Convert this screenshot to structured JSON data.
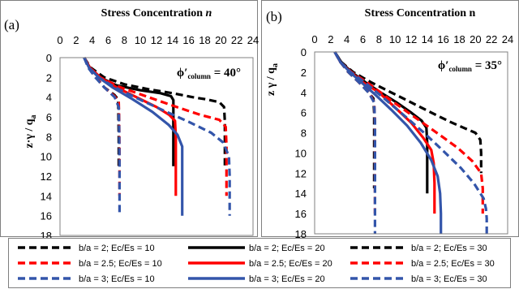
{
  "chart_data": [
    {
      "type": "line",
      "panel_label": "(a)",
      "title": "Stress Concentration ",
      "title_var": "n",
      "ylabel": "z·γ / q",
      "ylabel_sub": "a",
      "annotation": "ϕ′",
      "annotation_sub": "column",
      "annotation_value": " = 40°",
      "x_axis_position": "top",
      "y_reversed": true,
      "xlim": [
        0,
        24
      ],
      "ylim": [
        0,
        18
      ],
      "xticks": [
        "0",
        "2",
        "4",
        "6",
        "8",
        "10",
        "12",
        "14",
        "16",
        "18",
        "20",
        "22",
        "24"
      ],
      "yticks": [
        "0",
        "2",
        "4",
        "6",
        "8",
        "10",
        "12",
        "14",
        "16",
        "18"
      ],
      "series": [
        {
          "name": "b/a = 2; Ec/Es = 10",
          "color": "#000000",
          "dash": "dash",
          "points": [
            [
              3,
              0
            ],
            [
              3.6,
              1
            ],
            [
              4.5,
              2
            ],
            [
              5.5,
              3
            ],
            [
              6.8,
              3.8
            ],
            [
              7.2,
              4.2
            ],
            [
              7.25,
              5
            ],
            [
              7.3,
              8
            ],
            [
              7.3,
              11
            ]
          ]
        },
        {
          "name": "b/a = 2; Ec/Es = 20",
          "color": "#000000",
          "dash": "solid",
          "points": [
            [
              3,
              0
            ],
            [
              3.7,
              1
            ],
            [
              5,
              2
            ],
            [
              7,
              2.8
            ],
            [
              10,
              3.3
            ],
            [
              12.5,
              3.6
            ],
            [
              13.8,
              3.9
            ],
            [
              14.1,
              4.3
            ],
            [
              14.1,
              6
            ],
            [
              14.1,
              11
            ]
          ]
        },
        {
          "name": "b/a = 2; Ec/Es = 30",
          "color": "#000000",
          "dash": "dash",
          "points": [
            [
              3,
              0
            ],
            [
              3.8,
              1
            ],
            [
              5.5,
              2
            ],
            [
              8,
              2.7
            ],
            [
              11,
              3.2
            ],
            [
              14,
              3.6
            ],
            [
              16.5,
              4
            ],
            [
              18,
              4.2
            ],
            [
              19.8,
              4.5
            ],
            [
              20.4,
              5
            ],
            [
              20.5,
              6.5
            ],
            [
              20.5,
              8
            ],
            [
              20.5,
              11
            ]
          ]
        },
        {
          "name": "b/a = 2.5; Ec/Es = 10",
          "color": "#ff0000",
          "dash": "dash",
          "points": [
            [
              3,
              0
            ],
            [
              3.6,
              1
            ],
            [
              4.5,
              2
            ],
            [
              5.5,
              3
            ],
            [
              6.8,
              3.9
            ],
            [
              7.3,
              4.5
            ],
            [
              7.35,
              6
            ],
            [
              7.4,
              10
            ],
            [
              7.4,
              14
            ]
          ]
        },
        {
          "name": "b/a = 2.5; Ec/Es = 20",
          "color": "#ff0000",
          "dash": "solid",
          "points": [
            [
              3,
              0
            ],
            [
              3.7,
              1
            ],
            [
              5,
              2
            ],
            [
              7,
              3
            ],
            [
              9.5,
              4
            ],
            [
              12,
              5
            ],
            [
              13.6,
              5.8
            ],
            [
              14.3,
              6.4
            ],
            [
              14.4,
              8
            ],
            [
              14.4,
              14
            ]
          ]
        },
        {
          "name": "b/a = 2.5; Ec/Es = 30",
          "color": "#ff0000",
          "dash": "dash",
          "points": [
            [
              3,
              0
            ],
            [
              3.7,
              1
            ],
            [
              5,
              2
            ],
            [
              7.5,
              3
            ],
            [
              11,
              4
            ],
            [
              14.5,
              5
            ],
            [
              17.5,
              5.8
            ],
            [
              19.8,
              6.3
            ],
            [
              20.6,
              7
            ],
            [
              20.7,
              9
            ],
            [
              20.7,
              14
            ]
          ]
        },
        {
          "name": "b/a = 3; Ec/Es = 10",
          "color": "#3355aa",
          "dash": "dash",
          "points": [
            [
              3,
              0
            ],
            [
              3.5,
              1
            ],
            [
              4.4,
              2
            ],
            [
              5.5,
              3
            ],
            [
              6.8,
              4
            ],
            [
              7.3,
              5
            ],
            [
              7.35,
              7
            ],
            [
              7.4,
              11
            ],
            [
              7.4,
              16
            ]
          ]
        },
        {
          "name": "b/a = 3; Ec/Es = 20",
          "color": "#3355aa",
          "dash": "solid",
          "points": [
            [
              3,
              0
            ],
            [
              3.6,
              1
            ],
            [
              4.8,
              2
            ],
            [
              6.5,
              3
            ],
            [
              9,
              4.2
            ],
            [
              11.5,
              5.5
            ],
            [
              13.5,
              6.8
            ],
            [
              14.6,
              7.8
            ],
            [
              15.2,
              9
            ],
            [
              15.2,
              12
            ],
            [
              15.2,
              16
            ]
          ]
        },
        {
          "name": "b/a = 3; Ec/Es = 30",
          "color": "#3355aa",
          "dash": "dash",
          "points": [
            [
              3,
              0
            ],
            [
              3.6,
              1
            ],
            [
              4.8,
              2
            ],
            [
              6.8,
              3
            ],
            [
              9.8,
              4.2
            ],
            [
              13,
              5.4
            ],
            [
              16,
              6.5
            ],
            [
              18.8,
              7.6
            ],
            [
              20.3,
              8.6
            ],
            [
              21,
              10
            ],
            [
              21.1,
              12
            ],
            [
              21.1,
              16
            ]
          ]
        }
      ]
    },
    {
      "type": "line",
      "panel_label": "(b)",
      "title": "Stress Concentration n",
      "ylabel": "z γ / q",
      "ylabel_sub": "a",
      "annotation": "ϕ′",
      "annotation_sub": "column",
      "annotation_value": " = 35°",
      "x_axis_position": "top",
      "y_reversed": true,
      "xlim": [
        0,
        24
      ],
      "ylim": [
        0,
        18
      ],
      "xticks": [
        "0",
        "2",
        "4",
        "6",
        "8",
        "10",
        "12",
        "14",
        "16",
        "18",
        "20",
        "22",
        "24"
      ],
      "yticks": [
        "0",
        "2",
        "4",
        "6",
        "8",
        "10",
        "12",
        "14",
        "16",
        "18"
      ],
      "series": [
        {
          "name": "b/a = 2; Ec/Es = 10",
          "color": "#000000",
          "dash": "dash",
          "points": [
            [
              2.5,
              0
            ],
            [
              3.2,
              1
            ],
            [
              4.2,
              2
            ],
            [
              5.5,
              3
            ],
            [
              6.7,
              4
            ],
            [
              7.3,
              4.6
            ],
            [
              7.4,
              6
            ],
            [
              7.4,
              10
            ],
            [
              7.4,
              13.5
            ]
          ]
        },
        {
          "name": "b/a = 2; Ec/Es = 20",
          "color": "#000000",
          "dash": "solid",
          "points": [
            [
              2.5,
              0
            ],
            [
              3.3,
              1
            ],
            [
              4.6,
              2
            ],
            [
              6.3,
              3
            ],
            [
              8.2,
              4
            ],
            [
              10.2,
              5
            ],
            [
              12,
              6
            ],
            [
              13.3,
              6.8
            ],
            [
              13.9,
              7.5
            ],
            [
              14,
              9
            ],
            [
              14,
              14
            ]
          ]
        },
        {
          "name": "b/a = 2; Ec/Es = 30",
          "color": "#000000",
          "dash": "dash",
          "points": [
            [
              2.5,
              0
            ],
            [
              3.3,
              1
            ],
            [
              4.8,
              2
            ],
            [
              7,
              3
            ],
            [
              9.5,
              4
            ],
            [
              12,
              5
            ],
            [
              14.5,
              6
            ],
            [
              16.8,
              6.9
            ],
            [
              18.5,
              7.5
            ],
            [
              20,
              8
            ],
            [
              20.6,
              8.7
            ],
            [
              20.7,
              10
            ],
            [
              20.7,
              12
            ]
          ]
        },
        {
          "name": "b/a = 2.5; Ec/Es = 10",
          "color": "#ff0000",
          "dash": "dash",
          "points": [
            [
              2.5,
              0
            ],
            [
              3.2,
              1
            ],
            [
              4.2,
              2
            ],
            [
              5.5,
              3
            ],
            [
              6.8,
              4
            ],
            [
              7.4,
              5
            ],
            [
              7.5,
              7
            ],
            [
              7.5,
              12
            ],
            [
              7.5,
              16
            ]
          ]
        },
        {
          "name": "b/a = 2.5; Ec/Es = 20",
          "color": "#ff0000",
          "dash": "solid",
          "points": [
            [
              2.5,
              0
            ],
            [
              3.2,
              1
            ],
            [
              4.5,
              2
            ],
            [
              6,
              3
            ],
            [
              8,
              4
            ],
            [
              10,
              5.5
            ],
            [
              12,
              7
            ],
            [
              13.5,
              8.5
            ],
            [
              14.5,
              9.7
            ],
            [
              14.8,
              11
            ],
            [
              14.9,
              13
            ],
            [
              14.9,
              16
            ]
          ]
        },
        {
          "name": "b/a = 2.5; Ec/Es = 30",
          "color": "#ff0000",
          "dash": "dash",
          "points": [
            [
              2.5,
              0
            ],
            [
              3.2,
              1
            ],
            [
              4.6,
              2
            ],
            [
              6.5,
              3
            ],
            [
              9,
              4.5
            ],
            [
              12,
              6.2
            ],
            [
              15,
              7.9
            ],
            [
              17.8,
              9.5
            ],
            [
              19.6,
              10.8
            ],
            [
              20.7,
              12
            ],
            [
              20.9,
              13.5
            ],
            [
              20.9,
              16
            ]
          ]
        },
        {
          "name": "b/a = 3; Ec/Es = 10",
          "color": "#3355aa",
          "dash": "dash",
          "points": [
            [
              2.5,
              0
            ],
            [
              3.2,
              1
            ],
            [
              4.2,
              2
            ],
            [
              5.5,
              3
            ],
            [
              6.7,
              4
            ],
            [
              7.4,
              5
            ],
            [
              7.5,
              7
            ],
            [
              7.5,
              12
            ],
            [
              7.5,
              18
            ]
          ]
        },
        {
          "name": "b/a = 3; Ec/Es = 20",
          "color": "#3355aa",
          "dash": "solid",
          "points": [
            [
              2.5,
              0
            ],
            [
              3.2,
              1
            ],
            [
              4.4,
              2
            ],
            [
              5.8,
              3
            ],
            [
              7.5,
              4.2
            ],
            [
              9.5,
              5.7
            ],
            [
              11.5,
              7.3
            ],
            [
              13.2,
              9
            ],
            [
              14.5,
              10.7
            ],
            [
              15.3,
              12.3
            ],
            [
              15.6,
              14
            ],
            [
              15.7,
              16
            ],
            [
              15.7,
              18
            ]
          ]
        },
        {
          "name": "b/a = 3; Ec/Es = 30",
          "color": "#3355aa",
          "dash": "dash",
          "points": [
            [
              2.5,
              0
            ],
            [
              3.2,
              1
            ],
            [
              4.5,
              2
            ],
            [
              6.2,
              3
            ],
            [
              8.5,
              4.5
            ],
            [
              11,
              6.2
            ],
            [
              13.6,
              8
            ],
            [
              16,
              9.8
            ],
            [
              18.2,
              11.5
            ],
            [
              19.8,
              13
            ],
            [
              21,
              14.5
            ],
            [
              21.3,
              15.5
            ],
            [
              21.4,
              16.5
            ],
            [
              21.4,
              18
            ]
          ]
        }
      ]
    }
  ],
  "legend": {
    "columns": 3,
    "entries": [
      {
        "label": "b/a = 2; Ec/Es = 10",
        "color": "#000000",
        "dash": "dash"
      },
      {
        "label": "b/a = 2; Ec/Es = 20",
        "color": "#000000",
        "dash": "solid"
      },
      {
        "label": "b/a = 2; Ec/Es = 30",
        "color": "#000000",
        "dash": "dash"
      },
      {
        "label": "b/a = 2.5; Ec/Es = 10",
        "color": "#ff0000",
        "dash": "dash"
      },
      {
        "label": "b/a = 2.5; Ec/Es = 20",
        "color": "#ff0000",
        "dash": "solid"
      },
      {
        "label": "b/a = 2.5; Ec/Es = 30",
        "color": "#ff0000",
        "dash": "dash"
      },
      {
        "label": "b/a = 3; Ec/Es = 10",
        "color": "#3355aa",
        "dash": "dash"
      },
      {
        "label": "b/a = 3; Ec/Es = 20",
        "color": "#3355aa",
        "dash": "solid"
      },
      {
        "label": "b/a = 3; Ec/Es = 30",
        "color": "#3355aa",
        "dash": "dash"
      }
    ]
  }
}
